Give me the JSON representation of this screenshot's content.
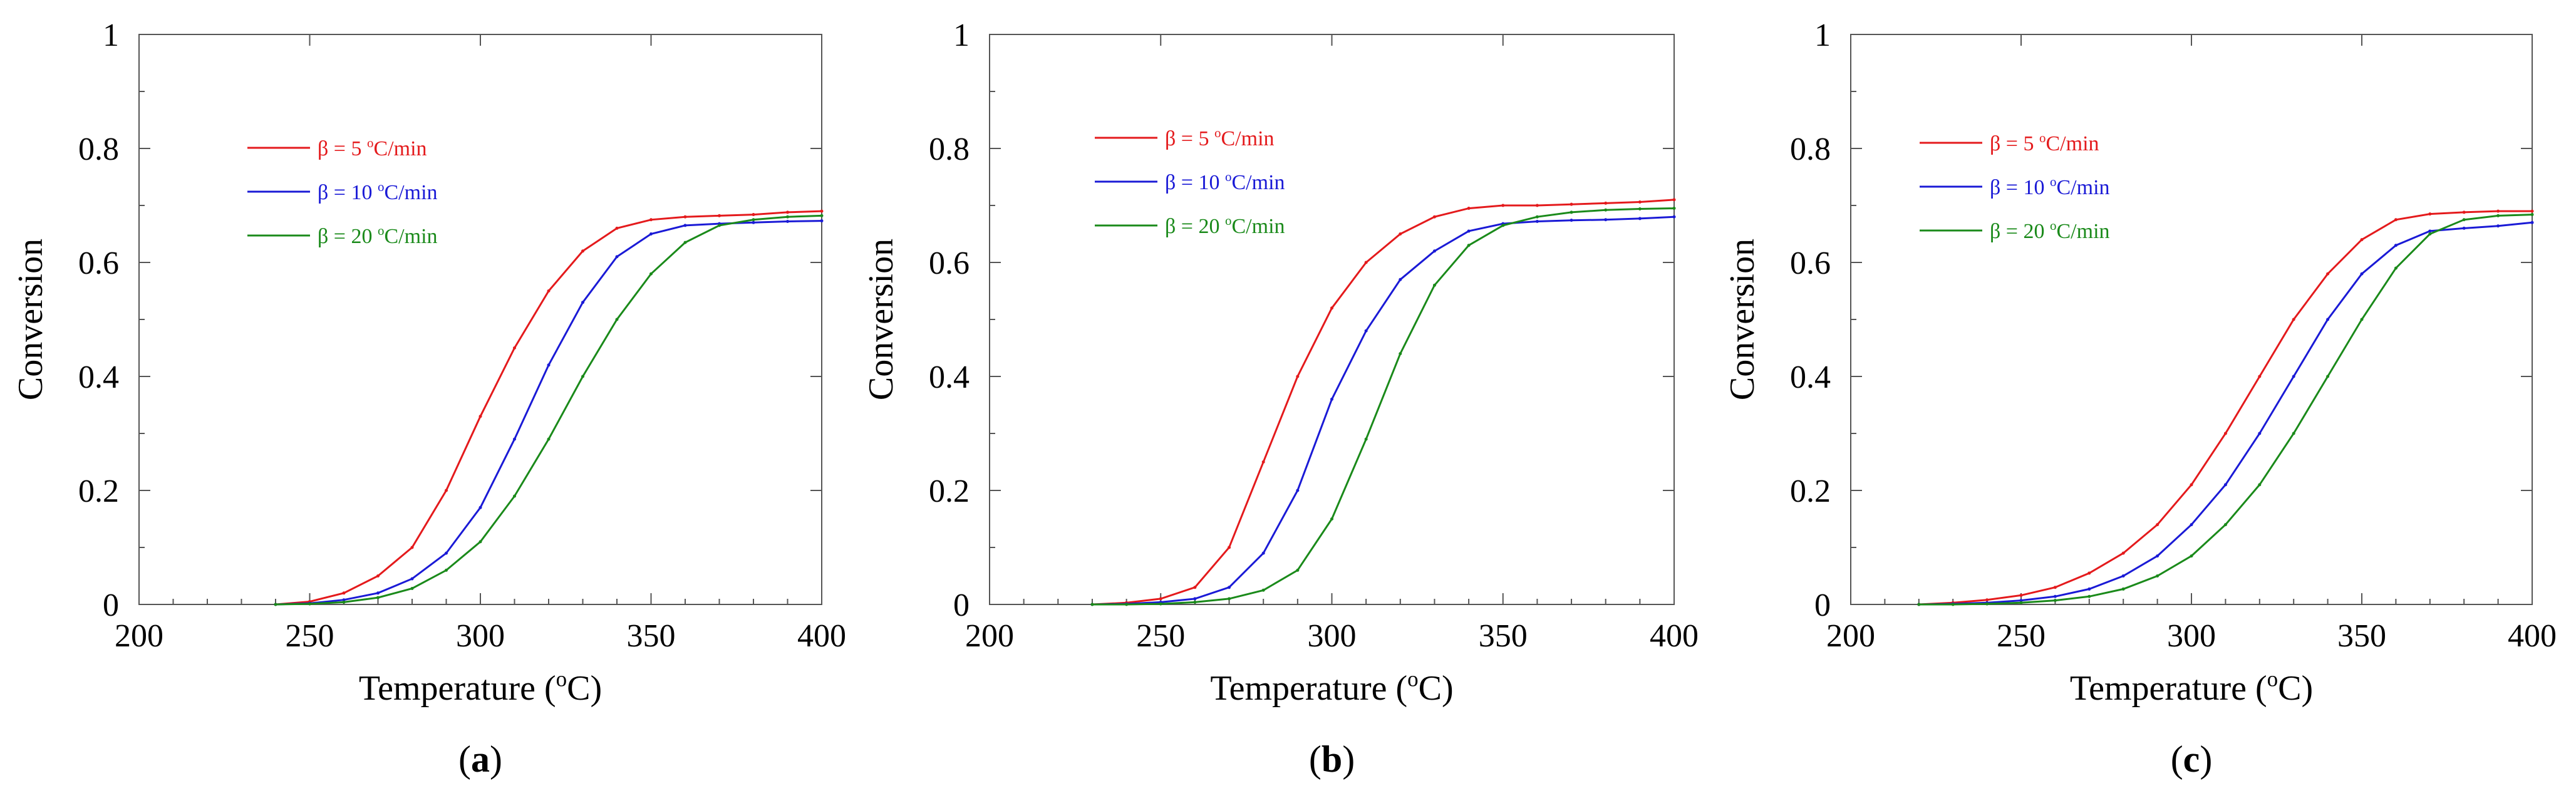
{
  "figure": {
    "panel_label_template": "(%)"
  },
  "chart_data": [
    {
      "type": "line",
      "panel": "a",
      "xlabel": "Temperature (oC)",
      "ylabel": "Conversion",
      "xlim": [
        200,
        400
      ],
      "ylim": [
        0,
        1
      ],
      "xticks": [
        200,
        250,
        300,
        350,
        400
      ],
      "yticks": [
        0,
        0.2,
        0.4,
        0.6,
        0.8,
        1
      ],
      "ytick_labels": [
        "0",
        "0.2",
        "0.4",
        "0.6",
        "0.8",
        "1"
      ],
      "legend_position": "upper-left",
      "series": [
        {
          "name": "β = 5 oC/min",
          "color": "#e41a1c",
          "x": [
            240,
            250,
            260,
            270,
            280,
            290,
            300,
            310,
            320,
            330,
            340,
            350,
            360,
            370,
            380,
            390,
            400
          ],
          "y": [
            0.0,
            0.005,
            0.02,
            0.05,
            0.1,
            0.2,
            0.33,
            0.45,
            0.55,
            0.62,
            0.66,
            0.675,
            0.68,
            0.682,
            0.684,
            0.688,
            0.69
          ]
        },
        {
          "name": "β = 10 oC/min",
          "color": "#1a1ad6",
          "x": [
            240,
            250,
            260,
            270,
            280,
            290,
            300,
            310,
            320,
            330,
            340,
            350,
            360,
            370,
            380,
            390,
            400
          ],
          "y": [
            0.0,
            0.002,
            0.008,
            0.02,
            0.045,
            0.09,
            0.17,
            0.29,
            0.42,
            0.53,
            0.61,
            0.65,
            0.665,
            0.668,
            0.67,
            0.672,
            0.673
          ]
        },
        {
          "name": "β = 20 oC/min",
          "color": "#1a8a1a",
          "x": [
            240,
            250,
            260,
            270,
            280,
            290,
            300,
            310,
            320,
            330,
            340,
            350,
            360,
            370,
            380,
            390,
            400
          ],
          "y": [
            0.0,
            0.001,
            0.004,
            0.012,
            0.028,
            0.06,
            0.11,
            0.19,
            0.29,
            0.4,
            0.5,
            0.58,
            0.635,
            0.665,
            0.675,
            0.68,
            0.682
          ]
        }
      ]
    },
    {
      "type": "line",
      "panel": "b",
      "xlabel": "Temperature (oC)",
      "ylabel": "Conversion",
      "xlim": [
        200,
        400
      ],
      "ylim": [
        0,
        1
      ],
      "xticks": [
        200,
        250,
        300,
        350,
        400
      ],
      "yticks": [
        0,
        0.2,
        0.4,
        0.6,
        0.8,
        1
      ],
      "ytick_labels": [
        "0",
        "0.2",
        "0.4",
        "0.6",
        "0.8",
        "1"
      ],
      "legend_position": "upper-left",
      "series": [
        {
          "name": "β = 5 oC/min",
          "color": "#e41a1c",
          "x": [
            230,
            240,
            250,
            260,
            270,
            280,
            290,
            300,
            310,
            320,
            330,
            340,
            350,
            360,
            370,
            380,
            390,
            400
          ],
          "y": [
            0.0,
            0.003,
            0.01,
            0.03,
            0.1,
            0.25,
            0.4,
            0.52,
            0.6,
            0.65,
            0.68,
            0.695,
            0.7,
            0.7,
            0.702,
            0.704,
            0.706,
            0.71
          ]
        },
        {
          "name": "β = 10 oC/min",
          "color": "#1a1ad6",
          "x": [
            230,
            240,
            250,
            260,
            270,
            280,
            290,
            300,
            310,
            320,
            330,
            340,
            350,
            360,
            370,
            380,
            390,
            400
          ],
          "y": [
            0.0,
            0.001,
            0.004,
            0.01,
            0.03,
            0.09,
            0.2,
            0.36,
            0.48,
            0.57,
            0.62,
            0.655,
            0.668,
            0.672,
            0.674,
            0.675,
            0.677,
            0.68
          ]
        },
        {
          "name": "β = 20 oC/min",
          "color": "#1a8a1a",
          "x": [
            230,
            240,
            250,
            260,
            270,
            280,
            290,
            300,
            310,
            320,
            330,
            340,
            350,
            360,
            370,
            380,
            390,
            400
          ],
          "y": [
            0.0,
            0.0,
            0.001,
            0.004,
            0.01,
            0.025,
            0.06,
            0.15,
            0.29,
            0.44,
            0.56,
            0.63,
            0.665,
            0.68,
            0.688,
            0.692,
            0.694,
            0.695
          ]
        }
      ]
    },
    {
      "type": "line",
      "panel": "c",
      "xlabel": "Temperature (oC)",
      "ylabel": "Conversion",
      "xlim": [
        200,
        400
      ],
      "ylim": [
        0,
        1
      ],
      "xticks": [
        200,
        250,
        300,
        350,
        400
      ],
      "yticks": [
        0,
        0.2,
        0.4,
        0.6,
        0.8,
        1
      ],
      "ytick_labels": [
        "0",
        "0.2",
        "0.4",
        "0.6",
        "0.8",
        "1"
      ],
      "legend_position": "upper-left",
      "series": [
        {
          "name": "β = 5 oC/min",
          "color": "#e41a1c",
          "x": [
            220,
            230,
            240,
            250,
            260,
            270,
            280,
            290,
            300,
            310,
            320,
            330,
            340,
            350,
            360,
            370,
            380,
            390,
            400
          ],
          "y": [
            0.0,
            0.003,
            0.008,
            0.016,
            0.03,
            0.055,
            0.09,
            0.14,
            0.21,
            0.3,
            0.4,
            0.5,
            0.58,
            0.64,
            0.675,
            0.685,
            0.688,
            0.69,
            0.69
          ]
        },
        {
          "name": "β = 10 oC/min",
          "color": "#1a1ad6",
          "x": [
            220,
            230,
            240,
            250,
            260,
            270,
            280,
            290,
            300,
            310,
            320,
            330,
            340,
            350,
            360,
            370,
            380,
            390,
            400
          ],
          "y": [
            0.0,
            0.001,
            0.003,
            0.007,
            0.014,
            0.027,
            0.05,
            0.085,
            0.14,
            0.21,
            0.3,
            0.4,
            0.5,
            0.58,
            0.63,
            0.655,
            0.66,
            0.664,
            0.67
          ]
        },
        {
          "name": "β = 20 oC/min",
          "color": "#1a8a1a",
          "x": [
            220,
            230,
            240,
            250,
            260,
            270,
            280,
            290,
            300,
            310,
            320,
            330,
            340,
            350,
            360,
            370,
            380,
            390,
            400
          ],
          "y": [
            0.0,
            0.0,
            0.001,
            0.003,
            0.007,
            0.014,
            0.027,
            0.05,
            0.085,
            0.14,
            0.21,
            0.3,
            0.4,
            0.5,
            0.59,
            0.65,
            0.675,
            0.682,
            0.684
          ]
        }
      ]
    }
  ]
}
